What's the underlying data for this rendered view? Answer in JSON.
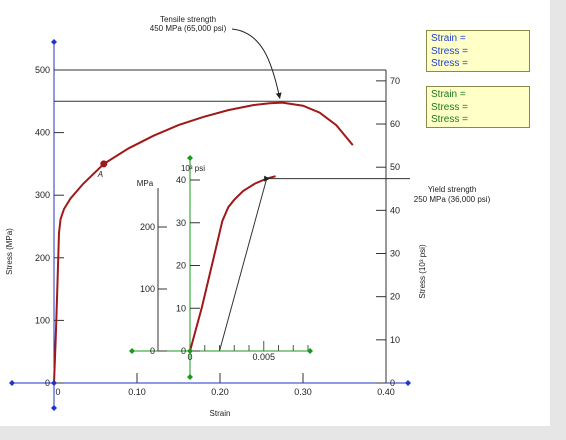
{
  "window": {
    "panel_color": "#ffffff",
    "background_color": "#e6e6e6"
  },
  "readouts": [
    {
      "color": "#1f3fd0",
      "lines": [
        "Strain =",
        "Stress =",
        "Stress ="
      ]
    },
    {
      "color": "#1a7a1a",
      "lines": [
        "Strain =",
        "Stress =",
        "Stress ="
      ]
    }
  ],
  "labels": {
    "tensile_title": "Tensile strength",
    "tensile_value": "450 MPa (65,000 psi)",
    "yield_title": "Yield strength",
    "yield_value": "250 MPa (36,000 psi)",
    "point_a": "A",
    "inset_mpa_unit": "MPa",
    "inset_psi_unit": "10³ psi"
  },
  "chart_data": {
    "type": "line",
    "xlabel": "Strain",
    "ylabel": "Stress (MPa)",
    "ylabel_right": "Stress (10³ psi)",
    "xlim": [
      0,
      0.4
    ],
    "ylim": [
      0,
      500
    ],
    "x_ticks": [
      "0",
      "0.10",
      "0.20",
      "0.30",
      "0.40"
    ],
    "y_ticks": [
      "0",
      "100",
      "200",
      "300",
      "400",
      "500"
    ],
    "y_ticks_right": [
      "0",
      "10",
      "20",
      "30",
      "40",
      "50",
      "60",
      "70"
    ],
    "series": [
      {
        "color": "#a01818",
        "points": [
          [
            0.0,
            0
          ],
          [
            0.002,
            70
          ],
          [
            0.004,
            150
          ],
          [
            0.006,
            240
          ],
          [
            0.008,
            262
          ],
          [
            0.012,
            278
          ],
          [
            0.02,
            295
          ],
          [
            0.035,
            318
          ],
          [
            0.06,
            350
          ],
          [
            0.09,
            375
          ],
          [
            0.12,
            395
          ],
          [
            0.15,
            412
          ],
          [
            0.18,
            425
          ],
          [
            0.21,
            436
          ],
          [
            0.24,
            444
          ],
          [
            0.26,
            447
          ],
          [
            0.275,
            448
          ],
          [
            0.3,
            443
          ],
          [
            0.32,
            432
          ],
          [
            0.34,
            412
          ],
          [
            0.36,
            380
          ]
        ]
      }
    ],
    "annotations": {
      "tensile_strength_mpa": 450,
      "yield_strength_mpa": 250,
      "point_a": [
        0.06,
        350
      ]
    },
    "inset": {
      "xlim": [
        0,
        0.008
      ],
      "ylim": [
        0,
        300
      ],
      "x_ticks": [
        "0",
        "0.005"
      ],
      "y_ticks_mpa": [
        "0",
        "100",
        "200"
      ],
      "y_ticks_psi": [
        "0",
        "10",
        "20",
        "30",
        "40"
      ],
      "points": [
        [
          0.0,
          0
        ],
        [
          0.0008,
          70
        ],
        [
          0.0016,
          150
        ],
        [
          0.0022,
          210
        ],
        [
          0.0026,
          232
        ],
        [
          0.003,
          244
        ],
        [
          0.0036,
          258
        ],
        [
          0.0044,
          270
        ],
        [
          0.0052,
          278
        ],
        [
          0.0058,
          282
        ]
      ],
      "offset_line": [
        [
          0.002,
          0
        ],
        [
          0.0052,
          278
        ]
      ]
    }
  }
}
